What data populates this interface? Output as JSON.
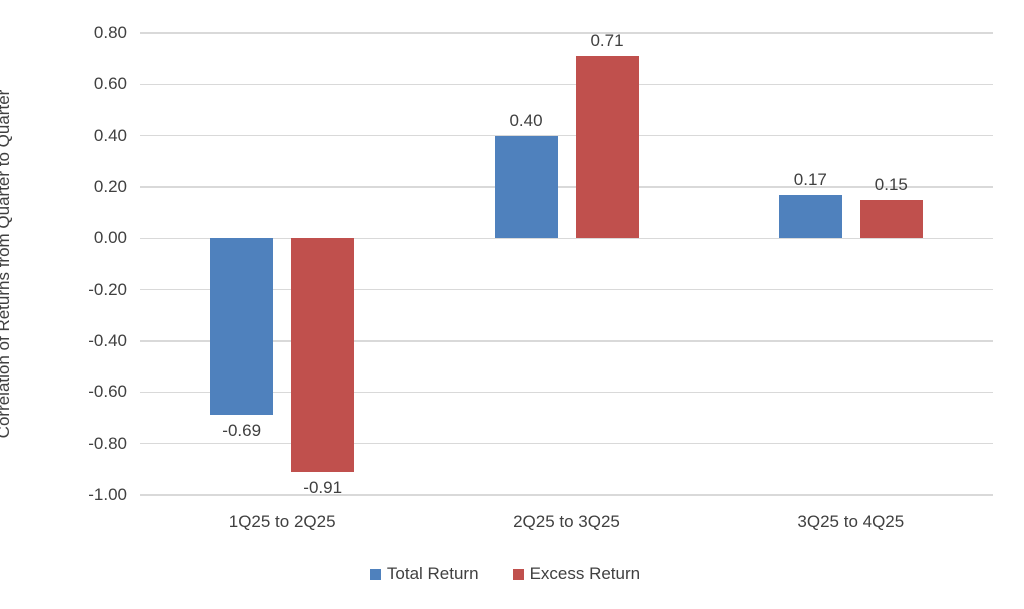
{
  "chart_data": {
    "type": "bar",
    "title": "",
    "ylabel": "Correlation of Returns from Quarter to Quarter",
    "xlabel": "",
    "categories": [
      "1Q25 to 2Q25",
      "2Q25 to 3Q25",
      "3Q25 to 4Q25"
    ],
    "series": [
      {
        "name": "Total Return",
        "color": "#4F81BD",
        "values": [
          -0.69,
          0.4,
          0.17
        ],
        "labels": [
          "-0.69",
          "0.40",
          "0.17"
        ]
      },
      {
        "name": "Excess Return",
        "color": "#C0504D",
        "values": [
          -0.91,
          0.71,
          0.15
        ],
        "labels": [
          "-0.91",
          "0.71",
          "0.15"
        ]
      }
    ],
    "ylim": [
      -1.0,
      0.8
    ],
    "ytick_step": 0.2,
    "ytick_labels": [
      "0.80",
      "0.60",
      "0.40",
      "0.20",
      "0.00",
      "-0.20",
      "-0.40",
      "-0.60",
      "-0.80",
      "-1.00"
    ],
    "grid": true,
    "legend_position": "bottom",
    "colors": {
      "gridline": "#D9D9D9",
      "text": "#404040",
      "background": "#FFFFFF"
    }
  }
}
